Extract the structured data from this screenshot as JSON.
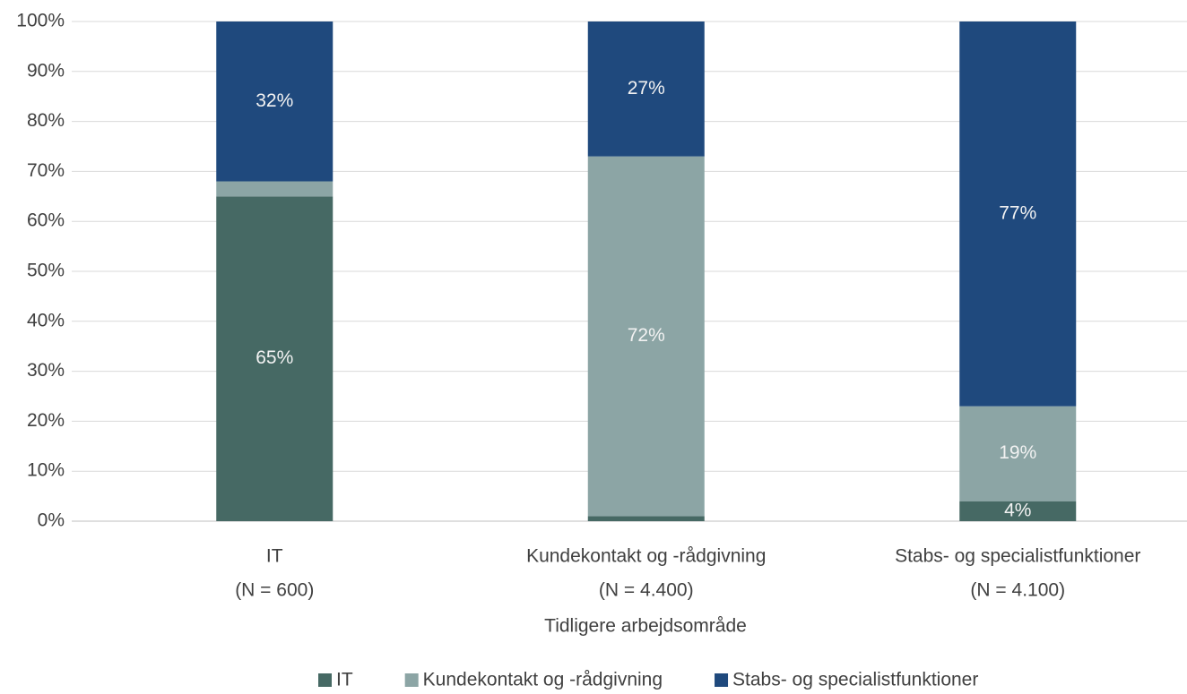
{
  "chart_data": {
    "type": "stacked_bar",
    "categories": [
      [
        "IT",
        "(N = 600)"
      ],
      [
        "Kundekontakt og -rådgivning",
        "(N = 4.400)"
      ],
      [
        "Stabs- og specialistfunktioner",
        "(N = 4.100)"
      ]
    ],
    "xlabel": "Tidligere arbejdsområde",
    "series": [
      {
        "name": "IT",
        "color": "#466964",
        "values": [
          65,
          1,
          4
        ],
        "value_labels": [
          "65%",
          null,
          "4%"
        ]
      },
      {
        "name": "Kundekontakt og -rådgivning",
        "color": "#8ca5a5",
        "values": [
          3,
          72,
          19
        ],
        "value_labels": [
          null,
          "72%",
          "19%"
        ]
      },
      {
        "name": "Stabs- og specialistfunktioner",
        "color": "#1f497d",
        "values": [
          32,
          27,
          77
        ],
        "value_labels": [
          "32%",
          "27%",
          "77%"
        ]
      }
    ],
    "ylim": [
      0,
      100
    ],
    "yticks": [
      {
        "value": 0,
        "label": "0%"
      },
      {
        "value": 10,
        "label": "10%"
      },
      {
        "value": 20,
        "label": "20%"
      },
      {
        "value": 30,
        "label": "30%"
      },
      {
        "value": 40,
        "label": "40%"
      },
      {
        "value": 50,
        "label": "50%"
      },
      {
        "value": 60,
        "label": "60%"
      },
      {
        "value": 70,
        "label": "70%"
      },
      {
        "value": 80,
        "label": "80%"
      },
      {
        "value": 90,
        "label": "90%"
      },
      {
        "value": 100,
        "label": "100%"
      }
    ],
    "grid": true,
    "legend": "bottom"
  }
}
